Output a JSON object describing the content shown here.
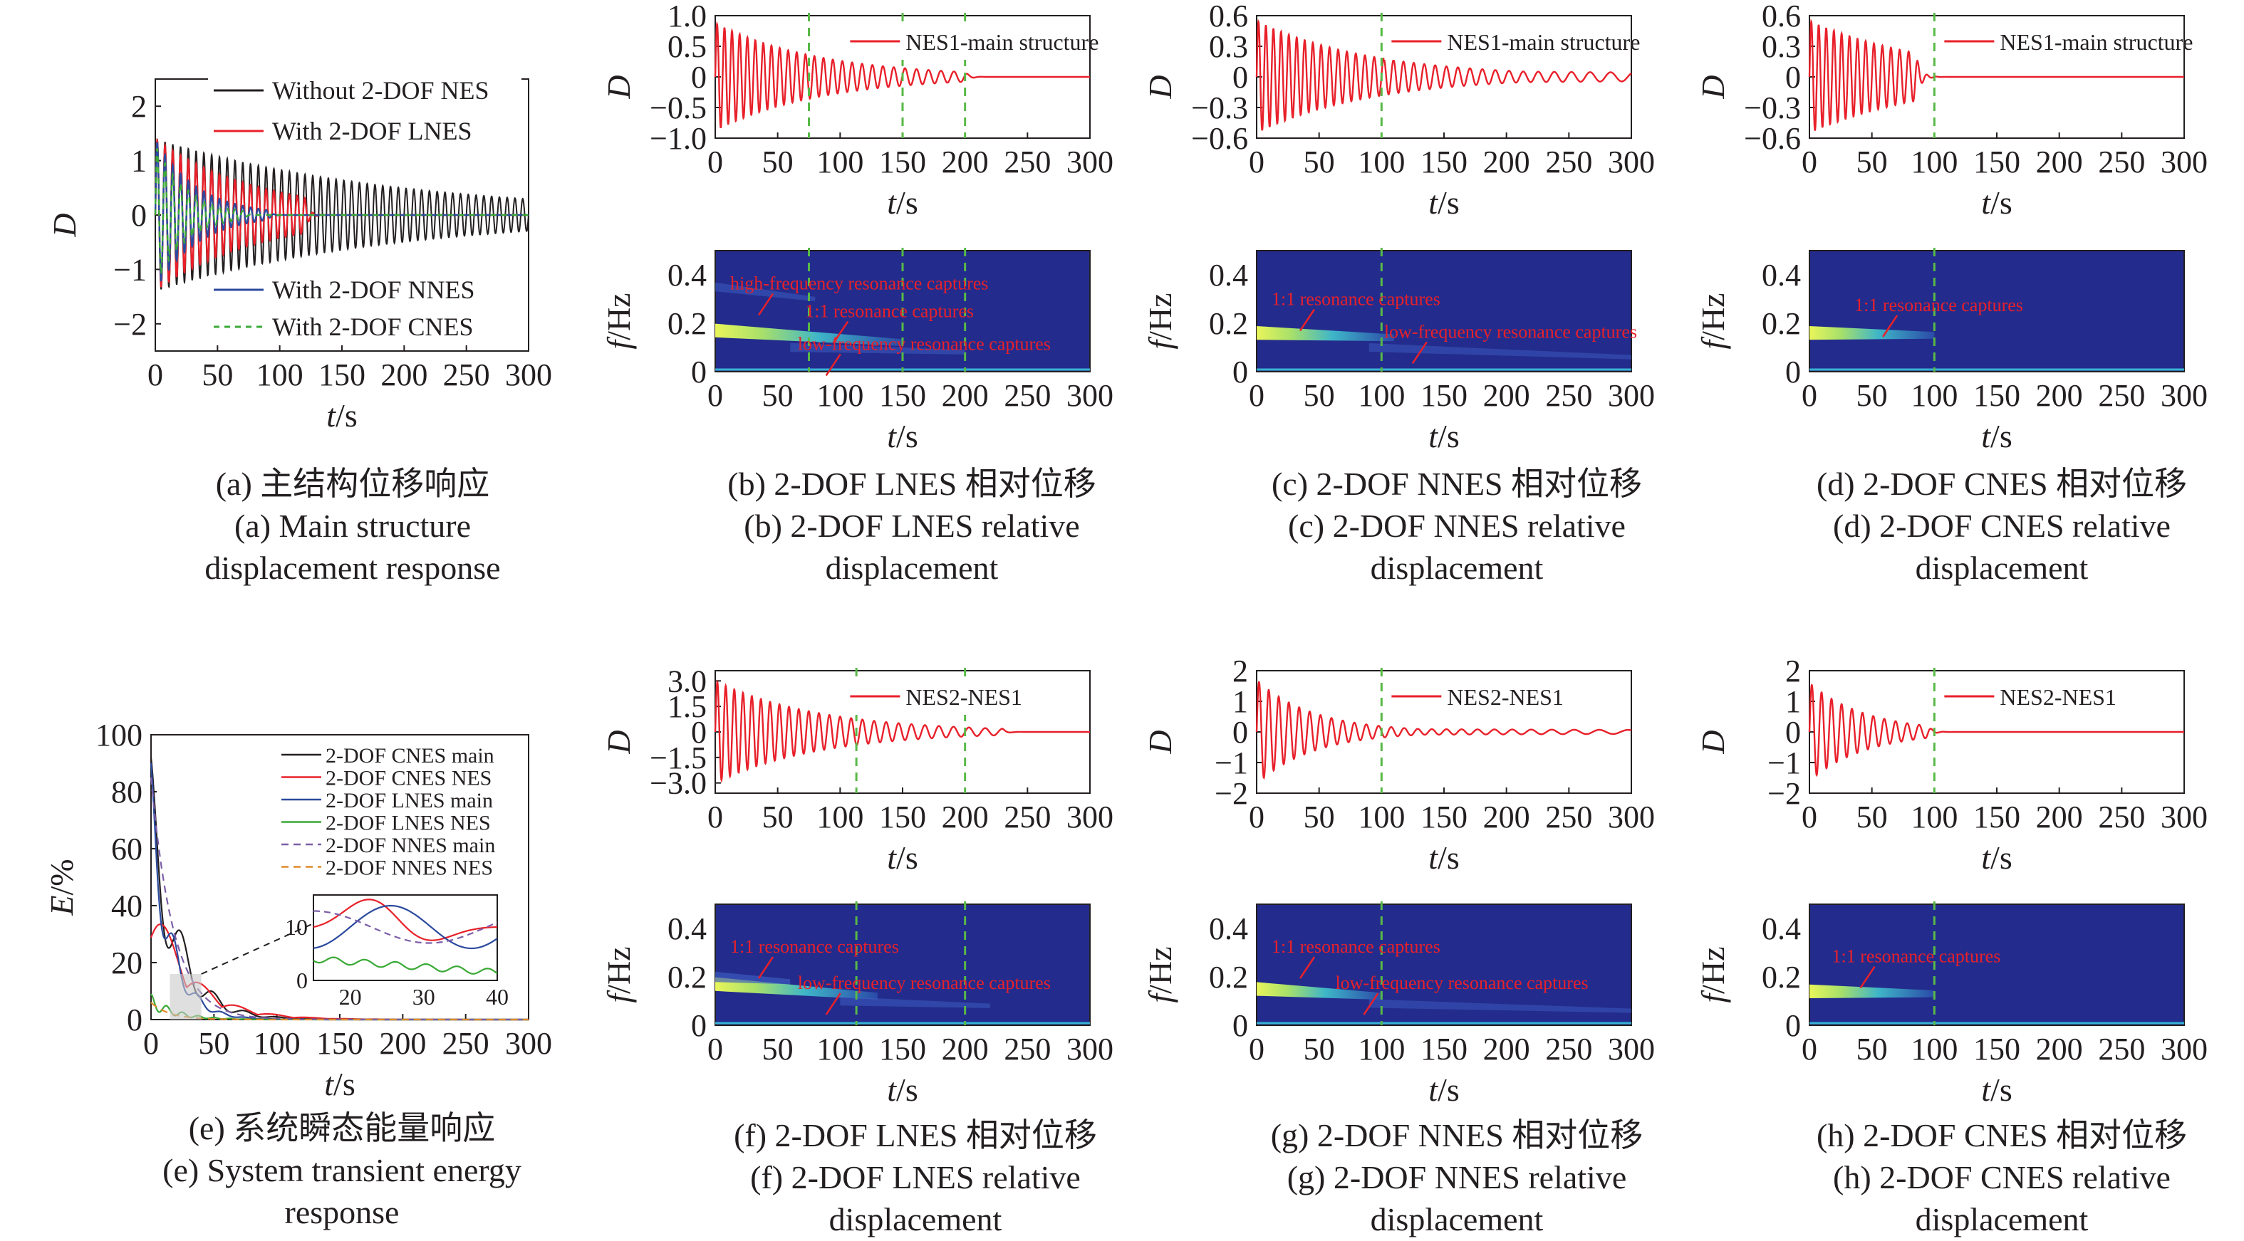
{
  "captions": [
    {
      "id": "a",
      "lines": [
        "(a) 主结构位移响应",
        "(a) Main structure",
        "displacement response"
      ]
    },
    {
      "id": "b",
      "lines": [
        "(b) 2-DOF LNES 相对位移",
        "(b) 2-DOF LNES relative",
        "displacement"
      ]
    },
    {
      "id": "c",
      "lines": [
        "(c) 2-DOF NNES 相对位移",
        "(c) 2-DOF NNES relative",
        "displacement"
      ]
    },
    {
      "id": "d",
      "lines": [
        "(d) 2-DOF CNES 相对位移",
        "(d) 2-DOF CNES relative",
        "displacement"
      ]
    },
    {
      "id": "e",
      "lines": [
        "(e) 系统瞬态能量响应",
        "(e) System transient energy",
        "response"
      ]
    },
    {
      "id": "f",
      "lines": [
        "(f) 2-DOF LNES 相对位移",
        "(f) 2-DOF LNES relative",
        "displacement"
      ]
    },
    {
      "id": "g",
      "lines": [
        "(g) 2-DOF NNES 相对位移",
        "(g) 2-DOF NNES relative",
        "displacement"
      ]
    },
    {
      "id": "h",
      "lines": [
        "(h) 2-DOF CNES 相对位移",
        "(h) 2-DOF CNES relative",
        "displacement"
      ]
    }
  ],
  "chart_data": [
    {
      "id": "a",
      "type": "line",
      "xlabel": "t/s",
      "ylabel": "D",
      "xlim": [
        0,
        300
      ],
      "ylim": [
        -2.5,
        2.5
      ],
      "xticks": [
        "0",
        "50",
        "100",
        "150",
        "200",
        "250",
        "300"
      ],
      "yticks": [
        "−2",
        "−1",
        "0",
        "1",
        "2"
      ],
      "ytick_values": [
        -2,
        -1,
        0,
        1,
        2
      ],
      "series": [
        {
          "name": "Without 2-DOF NES",
          "color": "#231f20",
          "dash": "",
          "amplitude": 1.4,
          "frequency": 0.16,
          "decay": 0.0052,
          "settle_time": 0
        },
        {
          "name": "With 2-DOF LNES",
          "color": "#e8202a",
          "dash": "",
          "amplitude": 1.4,
          "frequency": 0.16,
          "decay": 0.012,
          "settle_time": 120
        },
        {
          "name": "With 2-DOF NNES",
          "color": "#2b4a9e",
          "dash": "",
          "amplitude": 1.4,
          "frequency": 0.16,
          "decay": 0.03,
          "settle_time": 90
        },
        {
          "name": "With 2-DOF CNES",
          "color": "#3aa935",
          "dash": "8,7",
          "amplitude": 1.3,
          "frequency": 0.16,
          "decay": 0.04,
          "settle_time": 70
        }
      ]
    },
    {
      "id": "b",
      "type": "line",
      "xlabel": "t/s",
      "ylabel": "D",
      "xlim": [
        0,
        300
      ],
      "ylim": [
        -1.0,
        1.0
      ],
      "xticks": [
        "0",
        "50",
        "100",
        "150",
        "200",
        "250",
        "300"
      ],
      "yticks": [
        "−1.0",
        "−0.5",
        "0",
        "0.5",
        "1.0"
      ],
      "ytick_values": [
        -1,
        -0.5,
        0,
        0.5,
        1
      ],
      "vlines": [
        75,
        150,
        200
      ],
      "legend": "NES1-main structure",
      "color": "#e8202a",
      "model": {
        "amplitude": 0.88,
        "frequency": 0.17,
        "decay": 0.012,
        "settle_time": 200
      }
    },
    {
      "id": "b2",
      "type": "heatmap",
      "xlabel": "t/s",
      "ylabel": "f/Hz",
      "xlim": [
        0,
        300
      ],
      "ylim": [
        0,
        0.5
      ],
      "xticks": [
        "0",
        "50",
        "100",
        "150",
        "200",
        "250",
        "300"
      ],
      "yticks": [
        "0",
        "0.2",
        "0.4"
      ],
      "ytick_values": [
        0,
        0.2,
        0.4
      ],
      "vlines": [
        75,
        150,
        200
      ],
      "ridges": [
        {
          "t0": 0,
          "f0": 0.17,
          "t1": 150,
          "f1": 0.12,
          "strength": 1.0
        },
        {
          "t0": 0,
          "f0": 0.35,
          "t1": 80,
          "f1": 0.3,
          "strength": 0.3
        },
        {
          "t0": 60,
          "f0": 0.1,
          "t1": 200,
          "f1": 0.08,
          "strength": 0.3
        }
      ],
      "annotations": [
        "high-frequency resonance captures",
        "1:1 resonance captures",
        "low-frequency resonance captures"
      ]
    },
    {
      "id": "c",
      "type": "line",
      "xlabel": "t/s",
      "ylabel": "D",
      "xlim": [
        0,
        300
      ],
      "ylim": [
        -0.6,
        0.6
      ],
      "xticks": [
        "0",
        "50",
        "100",
        "150",
        "200",
        "250",
        "300"
      ],
      "yticks": [
        "−0.6",
        "−0.3",
        "0",
        "0.3",
        "0.6"
      ],
      "ytick_values": [
        -0.6,
        -0.3,
        0,
        0.3,
        0.6
      ],
      "vlines": [
        100
      ],
      "legend": "NES1-main structure",
      "color": "#e8202a",
      "model": {
        "amplitude": 0.55,
        "frequency": 0.17,
        "decay": 0.011,
        "settle_time": 300,
        "floor": 0.08
      }
    },
    {
      "id": "c2",
      "type": "heatmap",
      "xlabel": "t/s",
      "ylabel": "f/Hz",
      "xlim": [
        0,
        300
      ],
      "ylim": [
        0,
        0.5
      ],
      "xticks": [
        "0",
        "50",
        "100",
        "150",
        "200",
        "250",
        "300"
      ],
      "yticks": [
        "0",
        "0.2",
        "0.4"
      ],
      "ytick_values": [
        0,
        0.2,
        0.4
      ],
      "vlines": [
        100
      ],
      "ridges": [
        {
          "t0": 0,
          "f0": 0.16,
          "t1": 110,
          "f1": 0.14,
          "strength": 1.0
        },
        {
          "t0": 90,
          "f0": 0.1,
          "t1": 300,
          "f1": 0.06,
          "strength": 0.25
        }
      ],
      "annotations": [
        "1:1 resonance captures",
        "low-frequency resonance captures"
      ]
    },
    {
      "id": "d",
      "type": "line",
      "xlabel": "t/s",
      "ylabel": "D",
      "xlim": [
        0,
        300
      ],
      "ylim": [
        -0.6,
        0.6
      ],
      "xticks": [
        "0",
        "50",
        "100",
        "150",
        "200",
        "250",
        "300"
      ],
      "yticks": [
        "−0.6",
        "−0.3",
        "0",
        "0.3",
        "0.6"
      ],
      "ytick_values": [
        -0.6,
        -0.3,
        0,
        0.3,
        0.6
      ],
      "vlines": [
        100
      ],
      "legend": "NES1-main structure",
      "color": "#e8202a",
      "model": {
        "amplitude": 0.55,
        "frequency": 0.17,
        "decay": 0.01,
        "settle_time": 85
      }
    },
    {
      "id": "d2",
      "type": "heatmap",
      "xlabel": "t/s",
      "ylabel": "f/Hz",
      "xlim": [
        0,
        300
      ],
      "ylim": [
        0,
        0.5
      ],
      "xticks": [
        "0",
        "50",
        "100",
        "150",
        "200",
        "250",
        "300"
      ],
      "yticks": [
        "0",
        "0.2",
        "0.4"
      ],
      "ytick_values": [
        0,
        0.2,
        0.4
      ],
      "vlines": [
        100
      ],
      "ridges": [
        {
          "t0": 0,
          "f0": 0.16,
          "t1": 100,
          "f1": 0.15,
          "strength": 1.0
        }
      ],
      "annotations": [
        "1:1 resonance captures"
      ]
    },
    {
      "id": "e",
      "type": "line",
      "xlabel": "t/s",
      "ylabel": "E/%",
      "xlim": [
        0,
        300
      ],
      "ylim": [
        0,
        100
      ],
      "xticks": [
        "0",
        "50",
        "100",
        "150",
        "200",
        "250",
        "300"
      ],
      "yticks": [
        "0",
        "20",
        "40",
        "60",
        "80",
        "100"
      ],
      "ytick_values": [
        0,
        20,
        40,
        60,
        80,
        100
      ],
      "series": [
        {
          "name": "2-DOF CNES main",
          "color": "#231f20",
          "dash": ""
        },
        {
          "name": "2-DOF CNES NES",
          "color": "#e8202a",
          "dash": ""
        },
        {
          "name": "2-DOF LNES main",
          "color": "#2b4a9e",
          "dash": ""
        },
        {
          "name": "2-DOF LNES NES",
          "color": "#3aa935",
          "dash": ""
        },
        {
          "name": "2-DOF NNES main",
          "color": "#7b5ea7",
          "dash": "10,7"
        },
        {
          "name": "2-DOF NNES NES",
          "color": "#e08a2a",
          "dash": "10,7"
        }
      ],
      "inset": {
        "xlim": [
          15,
          40
        ],
        "ylim": [
          0,
          16
        ],
        "xticks": [
          "20",
          "30",
          "40"
        ],
        "yticks": [
          "0",
          "10"
        ],
        "ytick_values": [
          0,
          10
        ]
      }
    },
    {
      "id": "f",
      "type": "line",
      "xlabel": "t/s",
      "ylabel": "D",
      "xlim": [
        0,
        300
      ],
      "ylim": [
        -3.6,
        3.6
      ],
      "xticks": [
        "0",
        "50",
        "100",
        "150",
        "200",
        "250",
        "300"
      ],
      "yticks": [
        "−3.0",
        "−1.5",
        "0",
        "1.5",
        "3.0"
      ],
      "ytick_values": [
        -3,
        -1.5,
        0,
        1.5,
        3
      ],
      "vlines": [
        113,
        200
      ],
      "legend": "NES2-NES1",
      "color": "#e8202a",
      "model": {
        "amplitude": 3.0,
        "frequency": 0.15,
        "decay": 0.012,
        "settle_time": 230
      }
    },
    {
      "id": "f2",
      "type": "heatmap",
      "xlabel": "t/s",
      "ylabel": "f/Hz",
      "xlim": [
        0,
        300
      ],
      "ylim": [
        0,
        0.5
      ],
      "xticks": [
        "0",
        "50",
        "100",
        "150",
        "200",
        "250",
        "300"
      ],
      "yticks": [
        "0",
        "0.2",
        "0.4"
      ],
      "ytick_values": [
        0,
        0.2,
        0.4
      ],
      "vlines": [
        113,
        200
      ],
      "ridges": [
        {
          "t0": 0,
          "f0": 0.17,
          "t1": 130,
          "f1": 0.12,
          "strength": 1.0
        },
        {
          "t0": 0,
          "f0": 0.2,
          "t1": 60,
          "f1": 0.18,
          "strength": 0.5
        },
        {
          "t0": 100,
          "f0": 0.1,
          "t1": 220,
          "f1": 0.08,
          "strength": 0.3
        }
      ],
      "annotations": [
        "1:1 resonance captures",
        "low-frequency resonance captures"
      ]
    },
    {
      "id": "g",
      "type": "line",
      "xlabel": "t/s",
      "ylabel": "D",
      "xlim": [
        0,
        300
      ],
      "ylim": [
        -2,
        2
      ],
      "xticks": [
        "0",
        "50",
        "100",
        "150",
        "200",
        "250",
        "300"
      ],
      "yticks": [
        "−2",
        "−1",
        "0",
        "1",
        "2"
      ],
      "ytick_values": [
        -2,
        -1,
        0,
        1,
        2
      ],
      "vlines": [
        100
      ],
      "legend": "NES2-NES1",
      "color": "#e8202a",
      "model": {
        "amplitude": 1.7,
        "frequency": 0.13,
        "decay": 0.022,
        "settle_time": 300,
        "floor": 0.12
      }
    },
    {
      "id": "g2",
      "type": "heatmap",
      "xlabel": "t/s",
      "ylabel": "f/Hz",
      "xlim": [
        0,
        300
      ],
      "ylim": [
        0,
        0.5
      ],
      "xticks": [
        "0",
        "50",
        "100",
        "150",
        "200",
        "250",
        "300"
      ],
      "yticks": [
        "0",
        "0.2",
        "0.4"
      ],
      "ytick_values": [
        0,
        0.2,
        0.4
      ],
      "vlines": [
        100
      ],
      "ridges": [
        {
          "t0": 0,
          "f0": 0.15,
          "t1": 100,
          "f1": 0.12,
          "strength": 1.0
        },
        {
          "t0": 90,
          "f0": 0.09,
          "t1": 300,
          "f1": 0.06,
          "strength": 0.25
        }
      ],
      "annotations": [
        "1:1 resonance captures",
        "low-frequency resonance captures"
      ]
    },
    {
      "id": "h",
      "type": "line",
      "xlabel": "t/s",
      "ylabel": "D",
      "xlim": [
        0,
        300
      ],
      "ylim": [
        -2,
        2
      ],
      "xticks": [
        "0",
        "50",
        "100",
        "150",
        "200",
        "250",
        "300"
      ],
      "yticks": [
        "−2",
        "−1",
        "0",
        "1",
        "2"
      ],
      "ytick_values": [
        -2,
        -1,
        0,
        1,
        2
      ],
      "vlines": [
        100
      ],
      "legend": "NES2-NES1",
      "color": "#e8202a",
      "model": {
        "amplitude": 1.6,
        "frequency": 0.13,
        "decay": 0.022,
        "settle_time": 95
      }
    },
    {
      "id": "h2",
      "type": "heatmap",
      "xlabel": "t/s",
      "ylabel": "f/Hz",
      "xlim": [
        0,
        300
      ],
      "ylim": [
        0,
        0.5
      ],
      "xticks": [
        "0",
        "50",
        "100",
        "150",
        "200",
        "250",
        "300"
      ],
      "yticks": [
        "0",
        "0.2",
        "0.4"
      ],
      "ytick_values": [
        0,
        0.2,
        0.4
      ],
      "vlines": [
        100
      ],
      "ridges": [
        {
          "t0": 0,
          "f0": 0.14,
          "t1": 100,
          "f1": 0.13,
          "strength": 1.0
        }
      ],
      "annotations": [
        "1:1 resonance captures"
      ]
    }
  ]
}
